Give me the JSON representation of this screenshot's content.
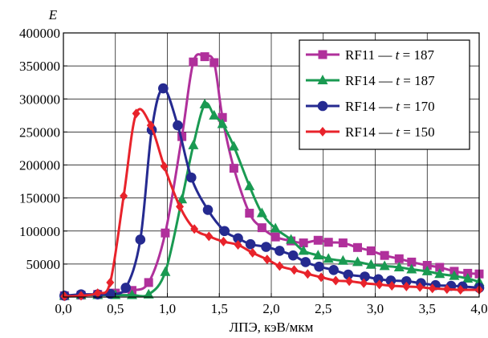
{
  "chart_data": {
    "type": "line",
    "ylabel": "E",
    "xlabel": "ЛПЭ, кэВ/мкм",
    "xlim": [
      0,
      4.0
    ],
    "ylim": [
      0,
      400000
    ],
    "x_ticks": [
      {
        "value": 0.0,
        "label": "0,0"
      },
      {
        "value": 0.5,
        "label": "0,5"
      },
      {
        "value": 1.0,
        "label": "1,0"
      },
      {
        "value": 1.5,
        "label": "1,5"
      },
      {
        "value": 2.0,
        "label": "2,0"
      },
      {
        "value": 2.5,
        "label": "2,5"
      },
      {
        "value": 3.0,
        "label": "3,0"
      },
      {
        "value": 3.5,
        "label": "3,5"
      },
      {
        "value": 4.0,
        "label": "4,0"
      }
    ],
    "y_ticks": [
      {
        "value": 50000,
        "label": "50000"
      },
      {
        "value": 100000,
        "label": "100000"
      },
      {
        "value": 150000,
        "label": "150000"
      },
      {
        "value": 200000,
        "label": "200000"
      },
      {
        "value": 250000,
        "label": "250000"
      },
      {
        "value": 300000,
        "label": "300000"
      },
      {
        "value": 350000,
        "label": "350000"
      },
      {
        "value": 400000,
        "label": "400000"
      }
    ],
    "grid": true,
    "legend_position": "top-right",
    "series": [
      {
        "name": "RF11 — t = 187",
        "legend_prefix": "RF11 — ",
        "legend_var": "t",
        "legend_suffix": " = 187",
        "color": "#b0309b",
        "marker": "square",
        "points": [
          [
            0.01,
            2000
          ],
          [
            0.17,
            3000
          ],
          [
            0.33,
            4000
          ],
          [
            0.5,
            6000
          ],
          [
            0.66,
            10000
          ],
          [
            0.82,
            22000
          ],
          [
            0.98,
            97000
          ],
          [
            1.14,
            243000
          ],
          [
            1.25,
            356000
          ],
          [
            1.36,
            364000
          ],
          [
            1.45,
            355000
          ],
          [
            1.53,
            272000
          ],
          [
            1.64,
            195000
          ],
          [
            1.79,
            127000
          ],
          [
            1.91,
            105000
          ],
          [
            2.04,
            91000
          ],
          [
            2.19,
            85000
          ],
          [
            2.31,
            82000
          ],
          [
            2.45,
            86000
          ],
          [
            2.55,
            83000
          ],
          [
            2.69,
            82000
          ],
          [
            2.83,
            75000
          ],
          [
            2.96,
            70000
          ],
          [
            3.09,
            63000
          ],
          [
            3.23,
            58000
          ],
          [
            3.35,
            53000
          ],
          [
            3.5,
            48000
          ],
          [
            3.62,
            45000
          ],
          [
            3.76,
            39000
          ],
          [
            3.89,
            36000
          ],
          [
            4.0,
            35000
          ]
        ]
      },
      {
        "name": "RF14 — t = 187",
        "legend_prefix": "RF14 — ",
        "legend_var": "t",
        "legend_suffix": " = 187",
        "color": "#1a9a52",
        "marker": "triangle",
        "points": [
          [
            0.01,
            2000
          ],
          [
            0.17,
            3000
          ],
          [
            0.33,
            3000
          ],
          [
            0.5,
            3000
          ],
          [
            0.66,
            3000
          ],
          [
            0.82,
            4000
          ],
          [
            0.98,
            38000
          ],
          [
            1.14,
            148000
          ],
          [
            1.25,
            230000
          ],
          [
            1.36,
            292000
          ],
          [
            1.45,
            275000
          ],
          [
            1.53,
            262000
          ],
          [
            1.64,
            228000
          ],
          [
            1.79,
            168000
          ],
          [
            1.91,
            127000
          ],
          [
            2.04,
            104000
          ],
          [
            2.19,
            87000
          ],
          [
            2.31,
            70000
          ],
          [
            2.45,
            63000
          ],
          [
            2.55,
            58000
          ],
          [
            2.69,
            55000
          ],
          [
            2.83,
            53000
          ],
          [
            2.96,
            49000
          ],
          [
            3.09,
            47000
          ],
          [
            3.23,
            45000
          ],
          [
            3.35,
            42000
          ],
          [
            3.5,
            39000
          ],
          [
            3.62,
            35000
          ],
          [
            3.76,
            32000
          ],
          [
            3.89,
            28000
          ],
          [
            4.0,
            23000
          ]
        ]
      },
      {
        "name": "RF14 — t = 170",
        "legend_prefix": "RF14 — ",
        "legend_var": "t",
        "legend_suffix": " = 170",
        "color": "#252a90",
        "marker": "circle",
        "points": [
          [
            0.01,
            2000
          ],
          [
            0.17,
            4000
          ],
          [
            0.33,
            4000
          ],
          [
            0.45,
            5000
          ],
          [
            0.6,
            14000
          ],
          [
            0.74,
            87000
          ],
          [
            0.85,
            253000
          ],
          [
            0.96,
            316000
          ],
          [
            1.1,
            260000
          ],
          [
            1.23,
            181000
          ],
          [
            1.39,
            132000
          ],
          [
            1.55,
            100000
          ],
          [
            1.68,
            89000
          ],
          [
            1.8,
            80000
          ],
          [
            1.95,
            76000
          ],
          [
            2.08,
            70000
          ],
          [
            2.21,
            63000
          ],
          [
            2.33,
            53000
          ],
          [
            2.46,
            46000
          ],
          [
            2.6,
            41000
          ],
          [
            2.74,
            34000
          ],
          [
            2.9,
            31000
          ],
          [
            3.03,
            27000
          ],
          [
            3.15,
            25000
          ],
          [
            3.3,
            24000
          ],
          [
            3.44,
            21000
          ],
          [
            3.58,
            18000
          ],
          [
            3.73,
            17000
          ],
          [
            3.84,
            16000
          ],
          [
            4.0,
            14000
          ]
        ]
      },
      {
        "name": "RF14 — t = 150",
        "legend_prefix": "RF14 — ",
        "legend_var": "t",
        "legend_suffix": " = 150",
        "color": "#e8232b",
        "marker": "diamond",
        "points": [
          [
            0.01,
            1000
          ],
          [
            0.17,
            2000
          ],
          [
            0.33,
            6000
          ],
          [
            0.45,
            22000
          ],
          [
            0.58,
            153000
          ],
          [
            0.7,
            278000
          ],
          [
            0.84,
            260000
          ],
          [
            0.97,
            198000
          ],
          [
            1.12,
            137000
          ],
          [
            1.26,
            103000
          ],
          [
            1.4,
            92000
          ],
          [
            1.54,
            84000
          ],
          [
            1.68,
            79000
          ],
          [
            1.82,
            67000
          ],
          [
            1.96,
            57000
          ],
          [
            2.08,
            47000
          ],
          [
            2.22,
            41000
          ],
          [
            2.35,
            35000
          ],
          [
            2.48,
            30000
          ],
          [
            2.62,
            25000
          ],
          [
            2.75,
            24000
          ],
          [
            2.89,
            21000
          ],
          [
            3.04,
            19000
          ],
          [
            3.16,
            17000
          ],
          [
            3.3,
            16000
          ],
          [
            3.43,
            15000
          ],
          [
            3.55,
            13000
          ],
          [
            3.69,
            12000
          ],
          [
            3.82,
            11000
          ],
          [
            4.0,
            11000
          ]
        ]
      }
    ]
  }
}
